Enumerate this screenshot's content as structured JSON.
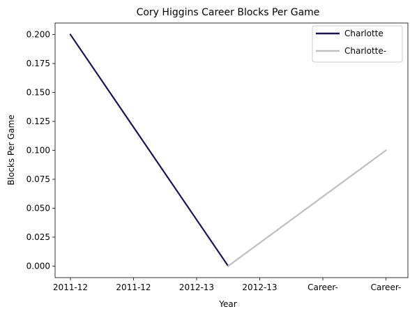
{
  "chart_data": {
    "type": "line",
    "title": "Cory Higgins Career Blocks Per Game",
    "xlabel": "Year",
    "ylabel": "Blocks Per Game",
    "x_ticks": [
      "2011-12",
      "2011-12",
      "2012-13",
      "2012-13",
      "Career-",
      "Career-"
    ],
    "y_ticks": [
      "0.000",
      "0.025",
      "0.050",
      "0.075",
      "0.100",
      "0.125",
      "0.150",
      "0.175",
      "0.200"
    ],
    "ylim": [
      -0.01,
      0.21
    ],
    "grid": false,
    "legend_position": "top-right",
    "series": [
      {
        "name": "Charlotte",
        "color": "#1a1456",
        "points": [
          [
            0,
            0.2
          ],
          [
            2.5,
            0.0
          ]
        ]
      },
      {
        "name": "Charlotte-",
        "color": "#bfbfbf",
        "points": [
          [
            2.5,
            0.0
          ],
          [
            5,
            0.1
          ]
        ]
      }
    ]
  }
}
